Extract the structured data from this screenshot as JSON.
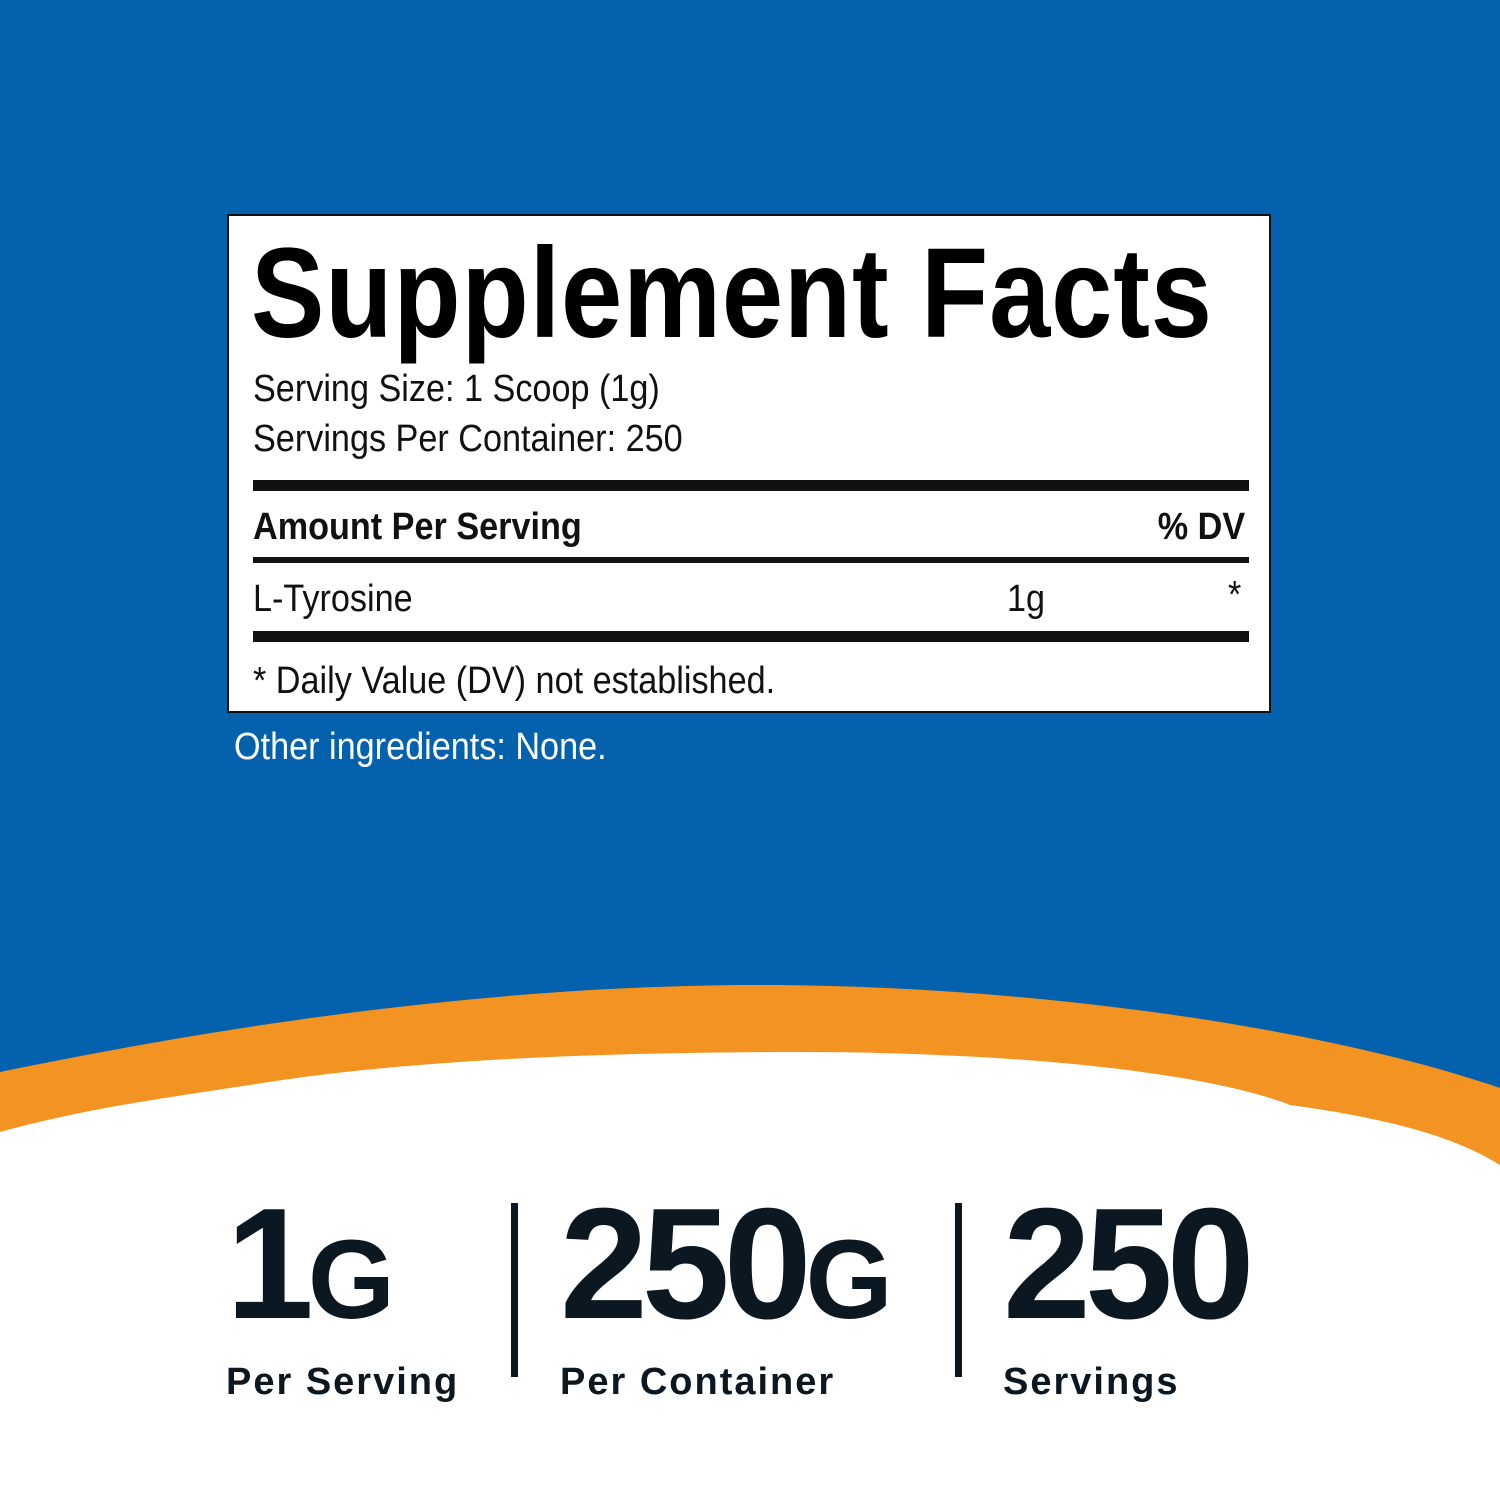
{
  "colors": {
    "background": "#0461ad",
    "accent": "#f39322",
    "text_dark": "#0b1822"
  },
  "facts": {
    "title": "Supplement Facts",
    "serving_size": "Serving Size: 1 Scoop (1g)",
    "servings_per_container": "Servings Per Container: 250",
    "amount_header": "Amount Per Serving",
    "dv_header": "% DV",
    "rows": [
      {
        "name": "L-Tyrosine",
        "amount": "1g",
        "dv": "*"
      }
    ],
    "footnote": "* Daily Value (DV) not established."
  },
  "other_ingredients": "Other ingredients: None.",
  "stats": [
    {
      "value": "1",
      "unit": "G",
      "label": "Per Serving"
    },
    {
      "value": "250",
      "unit": "G",
      "label": "Per Container"
    },
    {
      "value": "250",
      "unit": "",
      "label": "Servings"
    }
  ]
}
